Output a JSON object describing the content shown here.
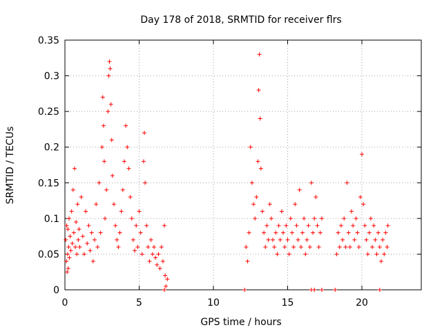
{
  "chart_data": {
    "type": "scatter",
    "title": "Day 178 of 2018, SRMTID for receiver flrs",
    "xlabel": "GPS time / hours",
    "ylabel": "SRMTID / TECUs",
    "xlim": [
      0,
      24
    ],
    "ylim": [
      0,
      0.35
    ],
    "xticks": [
      0,
      5,
      10,
      15,
      20
    ],
    "xtick_labels": [
      "0",
      "5",
      "10",
      "15",
      "20"
    ],
    "yticks": [
      0,
      0.05,
      0.1,
      0.15,
      0.2,
      0.25,
      0.3,
      0.35
    ],
    "ytick_labels": [
      "0",
      "0.05",
      "0.1",
      "0.15",
      "0.2",
      "0.25",
      "0.3",
      "0.35"
    ],
    "grid": true,
    "marker": "plus",
    "color": "#ff0000",
    "series": [
      {
        "name": "SRMTID",
        "points": [
          [
            0.05,
            0.07
          ],
          [
            0.1,
            0.04
          ],
          [
            0.12,
            0.09
          ],
          [
            0.15,
            0.025
          ],
          [
            0.18,
            0.05
          ],
          [
            0.2,
            0.085
          ],
          [
            0.22,
            0.03
          ],
          [
            0.25,
            0.06
          ],
          [
            0.28,
            0.1
          ],
          [
            0.3,
            0.045
          ],
          [
            0.35,
            0.075
          ],
          [
            0.4,
            0.055
          ],
          [
            0.45,
            0.11
          ],
          [
            0.5,
            0.065
          ],
          [
            0.55,
            0.14
          ],
          [
            0.6,
            0.08
          ],
          [
            0.65,
            0.17
          ],
          [
            0.7,
            0.06
          ],
          [
            0.75,
            0.095
          ],
          [
            0.8,
            0.05
          ],
          [
            0.85,
            0.12
          ],
          [
            0.9,
            0.07
          ],
          [
            0.95,
            0.085
          ],
          [
            1.0,
            0.06
          ],
          [
            1.1,
            0.13
          ],
          [
            1.2,
            0.075
          ],
          [
            1.3,
            0.05
          ],
          [
            1.4,
            0.11
          ],
          [
            1.5,
            0.065
          ],
          [
            1.6,
            0.09
          ],
          [
            1.7,
            0.055
          ],
          [
            1.8,
            0.08
          ],
          [
            1.9,
            0.04
          ],
          [
            2.0,
            0.07
          ],
          [
            2.1,
            0.12
          ],
          [
            2.2,
            0.06
          ],
          [
            2.3,
            0.15
          ],
          [
            2.4,
            0.08
          ],
          [
            2.5,
            0.2
          ],
          [
            2.55,
            0.27
          ],
          [
            2.6,
            0.23
          ],
          [
            2.65,
            0.18
          ],
          [
            2.7,
            0.1
          ],
          [
            2.8,
            0.14
          ],
          [
            2.9,
            0.25
          ],
          [
            2.95,
            0.3
          ],
          [
            3.0,
            0.32
          ],
          [
            3.05,
            0.31
          ],
          [
            3.1,
            0.26
          ],
          [
            3.15,
            0.21
          ],
          [
            3.2,
            0.16
          ],
          [
            3.3,
            0.12
          ],
          [
            3.4,
            0.09
          ],
          [
            3.5,
            0.07
          ],
          [
            3.6,
            0.06
          ],
          [
            3.7,
            0.08
          ],
          [
            3.8,
            0.11
          ],
          [
            3.9,
            0.14
          ],
          [
            4.0,
            0.18
          ],
          [
            4.1,
            0.23
          ],
          [
            4.2,
            0.2
          ],
          [
            4.3,
            0.17
          ],
          [
            4.4,
            0.13
          ],
          [
            4.5,
            0.1
          ],
          [
            4.6,
            0.07
          ],
          [
            4.7,
            0.055
          ],
          [
            4.8,
            0.09
          ],
          [
            4.9,
            0.06
          ],
          [
            5.0,
            0.11
          ],
          [
            5.1,
            0.08
          ],
          [
            5.2,
            0.05
          ],
          [
            5.3,
            0.18
          ],
          [
            5.35,
            0.22
          ],
          [
            5.4,
            0.15
          ],
          [
            5.5,
            0.09
          ],
          [
            5.6,
            0.06
          ],
          [
            5.7,
            0.04
          ],
          [
            5.8,
            0.07
          ],
          [
            5.9,
            0.05
          ],
          [
            6.0,
            0.06
          ],
          [
            6.1,
            0.045
          ],
          [
            6.2,
            0.035
          ],
          [
            6.3,
            0.05
          ],
          [
            6.4,
            0.03
          ],
          [
            6.5,
            0.06
          ],
          [
            6.6,
            0.04
          ],
          [
            6.7,
            0.09
          ],
          [
            6.75,
            0.02
          ],
          [
            6.8,
            0.005
          ],
          [
            6.9,
            0.015
          ],
          [
            6.7,
            0.0
          ],
          [
            12.1,
            0.0
          ],
          [
            12.2,
            0.06
          ],
          [
            12.3,
            0.04
          ],
          [
            12.4,
            0.08
          ],
          [
            12.5,
            0.2
          ],
          [
            12.6,
            0.15
          ],
          [
            12.7,
            0.12
          ],
          [
            12.8,
            0.1
          ],
          [
            12.9,
            0.13
          ],
          [
            13.0,
            0.18
          ],
          [
            13.05,
            0.28
          ],
          [
            13.1,
            0.33
          ],
          [
            13.15,
            0.24
          ],
          [
            13.2,
            0.17
          ],
          [
            13.3,
            0.11
          ],
          [
            13.4,
            0.08
          ],
          [
            13.5,
            0.06
          ],
          [
            13.6,
            0.09
          ],
          [
            13.7,
            0.07
          ],
          [
            13.8,
            0.12
          ],
          [
            13.9,
            0.1
          ],
          [
            14.0,
            0.07
          ],
          [
            14.1,
            0.06
          ],
          [
            14.2,
            0.08
          ],
          [
            14.3,
            0.05
          ],
          [
            14.4,
            0.09
          ],
          [
            14.5,
            0.07
          ],
          [
            14.6,
            0.11
          ],
          [
            14.7,
            0.08
          ],
          [
            14.8,
            0.06
          ],
          [
            14.9,
            0.09
          ],
          [
            15.0,
            0.07
          ],
          [
            15.1,
            0.05
          ],
          [
            15.2,
            0.1
          ],
          [
            15.3,
            0.08
          ],
          [
            15.4,
            0.06
          ],
          [
            15.5,
            0.12
          ],
          [
            15.6,
            0.09
          ],
          [
            15.7,
            0.07
          ],
          [
            15.8,
            0.14
          ],
          [
            15.9,
            0.06
          ],
          [
            16.0,
            0.08
          ],
          [
            16.1,
            0.1
          ],
          [
            16.2,
            0.05
          ],
          [
            16.3,
            0.07
          ],
          [
            16.4,
            0.09
          ],
          [
            16.5,
            0.06
          ],
          [
            16.6,
            0.15
          ],
          [
            16.7,
            0.08
          ],
          [
            16.8,
            0.1
          ],
          [
            16.9,
            0.13
          ],
          [
            17.0,
            0.09
          ],
          [
            17.1,
            0.06
          ],
          [
            17.2,
            0.08
          ],
          [
            17.3,
            0.1
          ],
          [
            16.6,
            0.0
          ],
          [
            16.8,
            0.0
          ],
          [
            17.3,
            0.0
          ],
          [
            18.2,
            0.0
          ],
          [
            21.2,
            0.0
          ],
          [
            18.3,
            0.05
          ],
          [
            18.4,
            0.08
          ],
          [
            18.5,
            0.06
          ],
          [
            18.6,
            0.09
          ],
          [
            18.7,
            0.07
          ],
          [
            18.8,
            0.1
          ],
          [
            18.9,
            0.06
          ],
          [
            19.0,
            0.15
          ],
          [
            19.1,
            0.08
          ],
          [
            19.2,
            0.06
          ],
          [
            19.3,
            0.11
          ],
          [
            19.4,
            0.09
          ],
          [
            19.5,
            0.07
          ],
          [
            19.6,
            0.1
          ],
          [
            19.7,
            0.08
          ],
          [
            19.8,
            0.06
          ],
          [
            19.9,
            0.13
          ],
          [
            20.0,
            0.19
          ],
          [
            20.1,
            0.12
          ],
          [
            20.2,
            0.09
          ],
          [
            20.3,
            0.07
          ],
          [
            20.4,
            0.05
          ],
          [
            20.5,
            0.08
          ],
          [
            20.6,
            0.1
          ],
          [
            20.7,
            0.06
          ],
          [
            20.8,
            0.09
          ],
          [
            20.9,
            0.07
          ],
          [
            21.0,
            0.05
          ],
          [
            21.1,
            0.08
          ],
          [
            21.2,
            0.06
          ],
          [
            21.3,
            0.04
          ],
          [
            21.4,
            0.07
          ],
          [
            21.5,
            0.05
          ],
          [
            21.6,
            0.08
          ],
          [
            21.7,
            0.06
          ],
          [
            21.75,
            0.09
          ]
        ]
      }
    ]
  }
}
